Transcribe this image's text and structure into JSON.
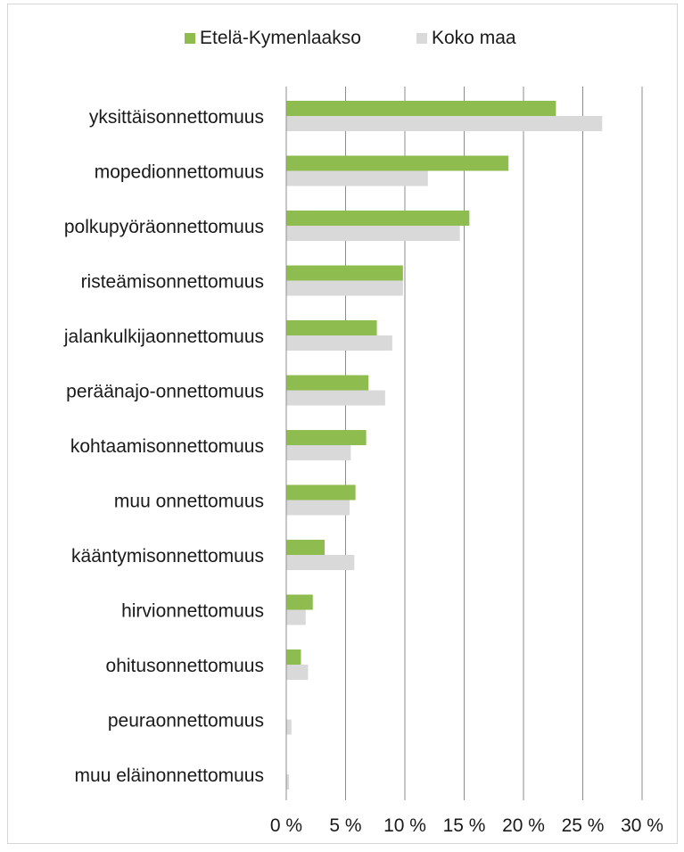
{
  "chart_data": {
    "type": "bar",
    "orientation": "horizontal",
    "categories": [
      "yksittäisonnettomuus",
      "mopedionnettomuus",
      "polkupyöräonnettomuus",
      "risteämisonnettomuus",
      "jalankulkijaonnettomuus",
      "peräänajo-onnettomuus",
      "kohtaamisonnettomuus",
      "muu onnettomuus",
      "kääntymisonnettomuus",
      "hirvionnettomuus",
      "ohitusonnettomuus",
      "peuraonnettomuus",
      "muu eläinonnettomuus"
    ],
    "series": [
      {
        "name": "Etelä-Kymenlaakso",
        "color": "#8fbc4f",
        "values": [
          22.7,
          18.7,
          15.4,
          9.8,
          7.6,
          6.9,
          6.7,
          5.8,
          3.2,
          2.2,
          1.2,
          0.0,
          0.0
        ]
      },
      {
        "name": "Koko maa",
        "color": "#d9d9d9",
        "values": [
          26.6,
          11.9,
          14.6,
          9.8,
          8.9,
          8.3,
          5.4,
          5.3,
          5.7,
          1.6,
          1.8,
          0.4,
          0.2
        ]
      }
    ],
    "xlim": [
      0,
      30
    ],
    "xticks": [
      "0 %",
      "5 %",
      "10 %",
      "15 %",
      "20 %",
      "25 %",
      "30 %"
    ],
    "grid": true,
    "legend_position": "top"
  }
}
